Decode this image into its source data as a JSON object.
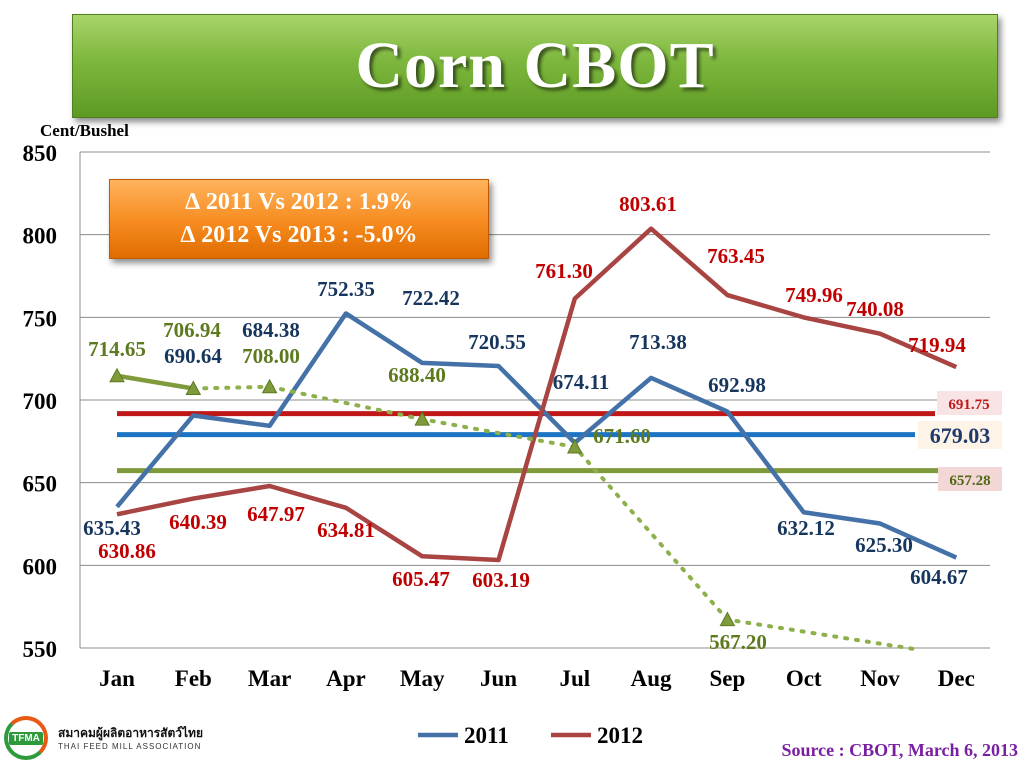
{
  "title": "Corn CBOT",
  "unit_label": "Cent/Bushel",
  "delta_box": {
    "line1": "∆ 2011 Vs 2012 : 1.9%",
    "line2": "∆ 2012 Vs 2013 : -5.0%"
  },
  "source": "Source : CBOT, March 6, 2013",
  "logo": {
    "abbr": "TFMA",
    "thai_name": "สมาคมผู้ผลิตอาหารสัตว์ไทย",
    "english_name": "THAI FEED MILL ASSOCIATION"
  },
  "colors": {
    "series_2011": "#4472a8",
    "series_2012": "#a84442",
    "series_2013": "#7f9a3b",
    "avg_2012": "#c01818",
    "avg_2011": "#1c74c4",
    "avg_2013": "#7f9a3b",
    "label_2011": "#17365d",
    "label_2012": "#c00000",
    "label_2013": "#5d7a1e"
  },
  "chart_data": {
    "type": "line",
    "categories": [
      "Jan",
      "Feb",
      "Mar",
      "Apr",
      "May",
      "Jun",
      "Jul",
      "Aug",
      "Sep",
      "Oct",
      "Nov",
      "Dec"
    ],
    "ylim": [
      550,
      850
    ],
    "yticks": [
      "550",
      "600",
      "650",
      "700",
      "750",
      "800",
      "850"
    ],
    "grid": true,
    "legend_position": "bottom",
    "series": [
      {
        "name": "2011",
        "values": [
          635.43,
          690.64,
          684.38,
          752.35,
          722.42,
          720.55,
          674.11,
          713.38,
          692.98,
          632.12,
          625.3,
          604.67
        ],
        "labels": [
          "635.43",
          "690.64",
          "684.38",
          "752.35",
          "722.42",
          "720.55",
          "674.11",
          "713.38",
          "692.98",
          "632.12",
          "625.30",
          "604.67"
        ]
      },
      {
        "name": "2012",
        "values": [
          630.86,
          640.39,
          647.97,
          634.81,
          605.47,
          603.19,
          761.3,
          803.61,
          763.45,
          749.96,
          740.08,
          719.94
        ],
        "labels": [
          "630.86",
          "640.39",
          "647.97",
          "634.81",
          "605.47",
          "603.19",
          "761.30",
          "803.61",
          "763.45",
          "749.96",
          "740.08",
          "719.94"
        ]
      },
      {
        "actual_values": [
          714.65,
          706.94
        ],
        "forecast_points": [
          [
            2,
            708.0
          ],
          [
            4,
            688.4
          ],
          [
            6,
            671.6
          ],
          [
            8,
            567.2
          ],
          [
            10.5,
            549
          ]
        ],
        "labels": [
          "714.65",
          "706.94",
          "708.00",
          "688.40",
          "671.60",
          "567.20"
        ]
      }
    ],
    "average_lines": [
      {
        "value": 691.75,
        "label": "691.75"
      },
      {
        "value": 679.03,
        "label": "679.03"
      },
      {
        "value": 657.28,
        "label": "657.28"
      }
    ]
  }
}
